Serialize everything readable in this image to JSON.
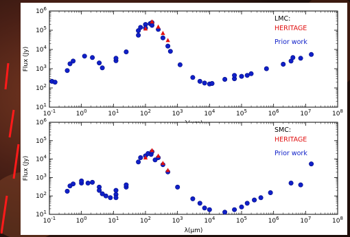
{
  "colors": {
    "heritage": "#e01010",
    "prior": "#1020c8",
    "marker_edge": "#000a80",
    "frame": "#000000",
    "stripe": "#ff1a1a"
  },
  "chart_data": [
    {
      "type": "scatter",
      "xscale": "log",
      "yscale": "log",
      "xlim": [
        0.1,
        100000000
      ],
      "ylim": [
        10,
        1000000
      ],
      "xlabel": "λ(μm)",
      "ylabel": "Flux (Jy)",
      "x_ticks": [
        "10^-1",
        "10^0",
        "10^1",
        "10^2",
        "10^3",
        "10^4",
        "10^5",
        "10^6",
        "10^7",
        "10^8"
      ],
      "y_ticks": [
        "10^1",
        "10^2",
        "10^3",
        "10^4",
        "10^5",
        "10^6"
      ],
      "legend": {
        "placement": "top-right",
        "title": "LMC:",
        "entries": [
          "HERITAGE",
          "Prior work"
        ]
      },
      "series": [
        {
          "name": "HERITAGE",
          "marker": "triangle",
          "x": [
            100,
            160,
            250,
            350,
            500
          ],
          "y": [
            120000,
            280000,
            150000,
            70000,
            30000
          ]
        },
        {
          "name": "Prior work",
          "marker": "circle",
          "x": [
            0.12,
            0.15,
            0.36,
            0.44,
            0.55,
            1.25,
            2.2,
            3.6,
            4.5,
            12,
            12,
            25,
            60,
            60,
            70,
            100,
            100,
            140,
            160,
            160,
            250,
            350,
            500,
            600,
            1200,
            3000,
            5000,
            7000,
            10000,
            12000,
            30000,
            60000,
            60000,
            100000,
            150000,
            200000,
            600000,
            2000000,
            3500000,
            4000000,
            7000000,
            15000000
          ],
          "y": [
            220,
            200,
            800,
            1800,
            2500,
            4500,
            3800,
            2000,
            1100,
            2600,
            3500,
            7500,
            95000,
            55000,
            140000,
            200000,
            130000,
            220000,
            250000,
            180000,
            110000,
            40000,
            15000,
            8000,
            1600,
            350,
            220,
            180,
            160,
            170,
            280,
            300,
            450,
            400,
            450,
            550,
            1000,
            1700,
            2500,
            3800,
            3500,
            5500
          ]
        }
      ]
    },
    {
      "type": "scatter",
      "xscale": "log",
      "yscale": "log",
      "xlim": [
        0.1,
        100000000
      ],
      "ylim": [
        10,
        1000000
      ],
      "xlabel": "λ(μm)",
      "ylabel": "Flux (Jy)",
      "x_ticks": [
        "10^-1",
        "10^0",
        "10^1",
        "10^2",
        "10^3",
        "10^4",
        "10^5",
        "10^6",
        "10^7",
        "10^8"
      ],
      "y_ticks": [
        "10^1",
        "10^2",
        "10^3",
        "10^4",
        "10^5",
        "10^6"
      ],
      "legend": {
        "placement": "top-right",
        "title": "SMC:",
        "entries": [
          "HERITAGE",
          "Prior work"
        ]
      },
      "series": [
        {
          "name": "HERITAGE",
          "marker": "triangle",
          "x": [
            100,
            160,
            250,
            350,
            500
          ],
          "y": [
            12000,
            30000,
            15000,
            6000,
            2500
          ]
        },
        {
          "name": "Prior work",
          "marker": "circle",
          "x": [
            0.36,
            0.44,
            0.55,
            1.0,
            1.0,
            1.6,
            2.2,
            3.6,
            3.6,
            4.5,
            5.8,
            8,
            12,
            12,
            12,
            25,
            25,
            60,
            70,
            100,
            120,
            150,
            160,
            200,
            250,
            350,
            500,
            1000,
            3000,
            5000,
            7000,
            10000,
            30000,
            60000,
            100000,
            150000,
            250000,
            400000,
            800000,
            3500000,
            7000000,
            15000000
          ],
          "y": [
            180,
            350,
            450,
            500,
            650,
            500,
            550,
            300,
            200,
            130,
            100,
            80,
            120,
            200,
            80,
            300,
            400,
            7000,
            12000,
            15000,
            20000,
            18000,
            25000,
            9000,
            12000,
            5000,
            2000,
            300,
            70,
            40,
            22,
            18,
            13,
            18,
            25,
            40,
            60,
            80,
            150,
            500,
            400,
            5500
          ]
        }
      ]
    }
  ]
}
